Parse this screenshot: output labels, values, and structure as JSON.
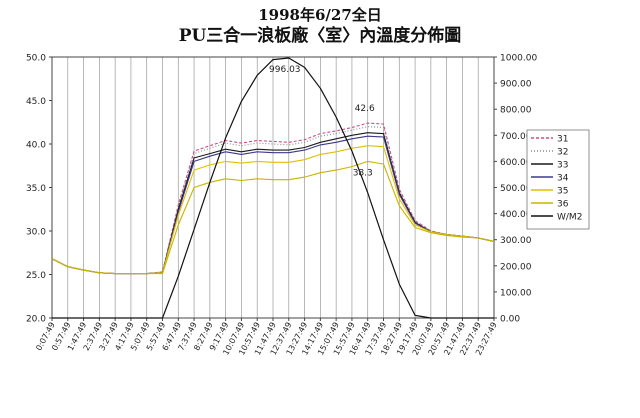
{
  "chart_data": {
    "type": "line",
    "title": "1998年6/27全日",
    "subtitle": "PU三合一浪板廠〈室〉內溫度分佈圖",
    "xlabel": "",
    "ylabel": "",
    "y2label": "",
    "ylim": [
      20,
      50
    ],
    "y2lim": [
      0,
      1000
    ],
    "yticks": [
      "20.0",
      "25.0",
      "30.0",
      "35.0",
      "40.0",
      "45.0",
      "50.0"
    ],
    "y2ticks": [
      "0.00",
      "100.00",
      "200.00",
      "300.00",
      "400.00",
      "500.00",
      "600.00",
      "700.00",
      "800.00",
      "900.00",
      "1000.00"
    ],
    "x": [
      "0:07:49",
      "0:57:49",
      "1:47:49",
      "2:37:49",
      "3:27:49",
      "4:17:49",
      "5:07:49",
      "5:57:49",
      "6:47:49",
      "7:37:49",
      "8:27:49",
      "9:17:49",
      "10:07:49",
      "10:57:49",
      "11:47:49",
      "12:37:49",
      "13:27:49",
      "14:17:49",
      "15:07:49",
      "15:57:49",
      "16:47:49",
      "17:37:49",
      "18:27:49",
      "19:17:49",
      "20:07:49",
      "20:57:49",
      "21:47:49",
      "22:37:49",
      "23:27:49"
    ],
    "annotations": [
      "996.03",
      "42.6",
      "38.3"
    ],
    "grid": true,
    "legend_position": "right",
    "series": [
      {
        "name": "31",
        "color": "#d04a8a",
        "dash": "3,2",
        "axis": "left",
        "values": [
          26.8,
          25.9,
          25.5,
          25.2,
          25.1,
          25.1,
          25.1,
          25.3,
          33.0,
          39.2,
          39.8,
          40.4,
          40.1,
          40.4,
          40.3,
          40.2,
          40.5,
          41.2,
          41.5,
          41.9,
          42.4,
          42.3,
          34.8,
          31.2,
          30.0,
          29.6,
          29.4,
          29.2,
          28.8
        ]
      },
      {
        "name": "32",
        "color": "#8a8a8a",
        "dash": "1,2",
        "axis": "left",
        "values": [
          26.8,
          25.9,
          25.5,
          25.2,
          25.1,
          25.1,
          25.1,
          25.3,
          32.8,
          38.9,
          39.5,
          40.1,
          39.8,
          40.1,
          40.0,
          39.9,
          40.2,
          40.9,
          41.2,
          41.6,
          42.0,
          41.9,
          34.6,
          31.1,
          30.0,
          29.6,
          29.4,
          29.2,
          28.8
        ]
      },
      {
        "name": "33",
        "color": "#1a1a1a",
        "dash": "",
        "axis": "left",
        "values": [
          26.8,
          25.9,
          25.5,
          25.2,
          25.1,
          25.1,
          25.1,
          25.2,
          32.5,
          38.4,
          38.9,
          39.4,
          39.1,
          39.4,
          39.3,
          39.3,
          39.6,
          40.2,
          40.6,
          41.0,
          41.3,
          41.2,
          34.4,
          31.0,
          29.9,
          29.6,
          29.4,
          29.2,
          28.8
        ]
      },
      {
        "name": "34",
        "color": "#3a3a8a",
        "dash": "",
        "axis": "left",
        "values": [
          26.8,
          25.9,
          25.5,
          25.2,
          25.1,
          25.1,
          25.1,
          25.2,
          32.2,
          38.0,
          38.6,
          39.1,
          38.8,
          39.1,
          39.0,
          39.0,
          39.3,
          39.9,
          40.2,
          40.6,
          40.9,
          40.8,
          34.2,
          30.9,
          29.9,
          29.6,
          29.4,
          29.2,
          28.8
        ]
      },
      {
        "name": "35",
        "color": "#e0c000",
        "dash": "",
        "axis": "left",
        "values": [
          26.8,
          25.9,
          25.5,
          25.2,
          25.1,
          25.1,
          25.1,
          25.2,
          31.8,
          37.0,
          37.6,
          38.0,
          37.8,
          38.0,
          37.9,
          37.9,
          38.2,
          38.8,
          39.1,
          39.5,
          39.8,
          39.7,
          33.7,
          30.7,
          29.9,
          29.6,
          29.4,
          29.2,
          28.8
        ]
      },
      {
        "name": "36",
        "color": "#c8b400",
        "dash": "",
        "axis": "left",
        "values": [
          26.8,
          25.9,
          25.5,
          25.2,
          25.1,
          25.1,
          25.1,
          25.1,
          30.7,
          35.0,
          35.6,
          36.0,
          35.8,
          36.0,
          35.9,
          35.9,
          36.2,
          36.7,
          37.0,
          37.4,
          38.0,
          37.7,
          32.9,
          30.4,
          29.8,
          29.5,
          29.3,
          29.2,
          28.8
        ]
      },
      {
        "name": "W/M2",
        "color": "#111111",
        "dash": "",
        "axis": "right",
        "values": [
          0,
          0,
          0,
          0,
          0,
          0,
          0,
          0,
          160,
          340,
          520,
          690,
          830,
          930,
          990,
          996.03,
          960,
          880,
          770,
          640,
          480,
          300,
          130,
          10,
          0,
          0,
          0,
          0,
          0
        ]
      }
    ]
  }
}
